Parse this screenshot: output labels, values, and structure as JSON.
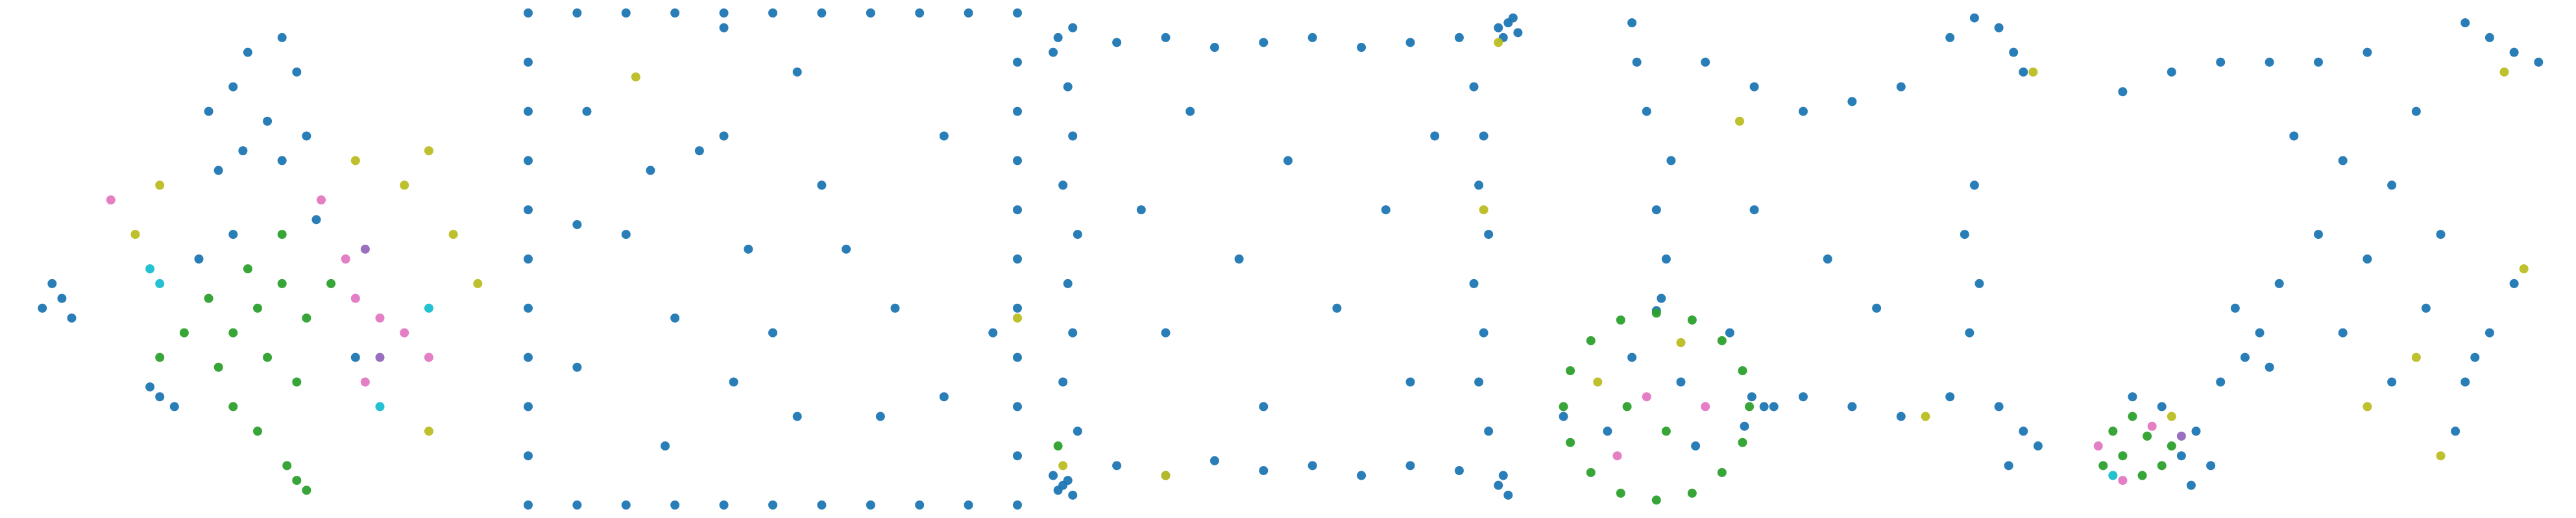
{
  "chart_data": [
    {
      "type": "scatter",
      "xlim": [
        0,
        100
      ],
      "ylim": [
        0,
        100
      ],
      "series": [
        {
          "color": "#1f77b4",
          "x": [
            48,
            55,
            45,
            58,
            40,
            52,
            60,
            47,
            55,
            42,
            8,
            10,
            6,
            12,
            30,
            33,
            28,
            45,
            38,
            62,
            70
          ],
          "y": [
            92,
            95,
            85,
            88,
            80,
            78,
            75,
            72,
            70,
            68,
            45,
            42,
            40,
            38,
            22,
            20,
            24,
            55,
            50,
            58,
            30
          ]
        },
        {
          "color": "#2ca02c",
          "x": [
            50,
            55,
            45,
            60,
            52,
            40,
            48,
            58,
            42,
            35,
            65,
            55,
            50,
            58,
            60,
            56,
            30,
            45
          ],
          "y": [
            40,
            45,
            35,
            38,
            30,
            42,
            48,
            25,
            28,
            35,
            45,
            55,
            15,
            5,
            3,
            8,
            30,
            20
          ]
        },
        {
          "color": "#e377c2",
          "x": [
            70,
            75,
            80,
            68,
            85,
            72,
            20,
            63
          ],
          "y": [
            42,
            38,
            35,
            50,
            30,
            25,
            62,
            62
          ]
        },
        {
          "color": "#bcbd22",
          "x": [
            25,
            85,
            90,
            80,
            95,
            30,
            70,
            85
          ],
          "y": [
            55,
            15,
            55,
            65,
            45,
            65,
            70,
            72
          ]
        },
        {
          "color": "#17becf",
          "x": [
            28,
            30,
            85,
            75
          ],
          "y": [
            48,
            45,
            40,
            20
          ]
        },
        {
          "color": "#9467bd",
          "x": [
            72,
            75
          ],
          "y": [
            52,
            30
          ]
        }
      ]
    },
    {
      "type": "scatter",
      "xlim": [
        0,
        100
      ],
      "ylim": [
        0,
        100
      ],
      "series": [
        {
          "color": "#1f77b4",
          "x": [
            0,
            10,
            20,
            30,
            40,
            50,
            60,
            70,
            80,
            90,
            100,
            0,
            0,
            0,
            0,
            0,
            0,
            0,
            0,
            0,
            0,
            10,
            20,
            30,
            40,
            50,
            60,
            70,
            80,
            90,
            100,
            100,
            100,
            100,
            100,
            100,
            100,
            100,
            100,
            100,
            40,
            12,
            25,
            35,
            40,
            55,
            85,
            60,
            10,
            45,
            65,
            75,
            30,
            50,
            95,
            42,
            55,
            72,
            28,
            20,
            85,
            10
          ],
          "y": [
            0,
            0,
            0,
            0,
            0,
            0,
            0,
            0,
            0,
            0,
            0,
            10,
            20,
            30,
            40,
            50,
            60,
            70,
            80,
            90,
            100,
            100,
            100,
            100,
            100,
            100,
            100,
            100,
            100,
            100,
            100,
            10,
            20,
            30,
            40,
            50,
            60,
            70,
            80,
            90,
            97,
            80,
            68,
            72,
            75,
            88,
            75,
            65,
            57,
            52,
            52,
            40,
            38,
            35,
            35,
            25,
            18,
            18,
            12,
            55,
            22,
            28
          ]
        },
        {
          "color": "#bcbd22",
          "x": [
            22,
            100
          ],
          "y": [
            87,
            38
          ]
        }
      ]
    },
    {
      "type": "scatter",
      "xlim": [
        0,
        100
      ],
      "ylim": [
        0,
        100
      ],
      "series": [
        {
          "color": "#1f77b4",
          "x": [
            3,
            5,
            2,
            6,
            4,
            93,
            95,
            97,
            94,
            96,
            93,
            95,
            94,
            3,
            6,
            2,
            5,
            6,
            4,
            7,
            5,
            6,
            4,
            7,
            88,
            90,
            89,
            91,
            88,
            90,
            89,
            91,
            15,
            25,
            35,
            45,
            55,
            65,
            75,
            85,
            15,
            25,
            35,
            45,
            55,
            65,
            75,
            85,
            30,
            50,
            70,
            40,
            60,
            25,
            75,
            45,
            80,
            20
          ],
          "y": [
            3,
            5,
            6,
            2,
            4,
            97,
            98,
            96,
            95,
            99,
            4,
            2,
            6,
            95,
            97,
            92,
            85,
            75,
            65,
            55,
            45,
            35,
            25,
            15,
            85,
            75,
            65,
            55,
            45,
            35,
            25,
            15,
            8,
            6,
            9,
            7,
            8,
            6,
            8,
            7,
            94,
            95,
            93,
            94,
            95,
            93,
            94,
            95,
            80,
            70,
            60,
            50,
            40,
            35,
            25,
            20,
            75,
            60
          ]
        },
        {
          "color": "#bcbd22",
          "x": [
            4,
            93,
            90,
            25
          ],
          "y": [
            8,
            94,
            60,
            6
          ]
        },
        {
          "color": "#2ca02c",
          "x": [
            3
          ],
          "y": [
            12
          ]
        }
      ]
    },
    {
      "type": "scatter",
      "xlim": [
        0,
        100
      ],
      "ylim": [
        0,
        100
      ],
      "series": [
        {
          "color": "#1f77b4",
          "x": [
            39.5,
            20,
            1,
            38,
            42,
            44,
            15,
            25,
            10,
            28,
            21,
            22,
            20,
            23,
            18,
            16,
            15,
            30,
            40,
            50,
            60,
            70,
            80,
            85,
            90,
            93,
            95,
            85,
            83,
            86,
            84,
            90,
            95,
            98,
            92,
            50,
            60,
            70,
            80,
            40,
            55,
            65,
            35
          ],
          "y": [
            22,
            39.5,
            18,
            16,
            20,
            20,
            30,
            25,
            15,
            12,
            42,
            50,
            60,
            70,
            80,
            90,
            98,
            90,
            85,
            80,
            82,
            85,
            95,
            99,
            97,
            92,
            88,
            65,
            55,
            45,
            35,
            20,
            15,
            12,
            8,
            22,
            20,
            18,
            22,
            60,
            50,
            40,
            35
          ]
        },
        {
          "color": "#2ca02c",
          "x": [
            39,
            37.6,
            33.4,
            27.3,
            20,
            12.7,
            6.6,
            2.4,
            1,
            2.4,
            6.6,
            12.7,
            20,
            27.3,
            33.4,
            37.6,
            22,
            14
          ],
          "y": [
            20,
            27.3,
            33.4,
            37.6,
            39,
            37.6,
            33.4,
            27.3,
            20,
            12.7,
            6.6,
            2.4,
            1,
            2.4,
            6.6,
            12.7,
            15,
            20
          ]
        },
        {
          "color": "#e377c2",
          "x": [
            18,
            30,
            12
          ],
          "y": [
            22,
            20,
            10
          ]
        },
        {
          "color": "#bcbd22",
          "x": [
            25,
            8,
            37,
            97,
            75
          ],
          "y": [
            33,
            25,
            78,
            88,
            18
          ]
        }
      ]
    },
    {
      "type": "scatter",
      "xlim": [
        0,
        100
      ],
      "ylim": [
        0,
        100
      ],
      "series": [
        {
          "color": "#1f77b4",
          "x": [
            22,
            25,
            18,
            28,
            24,
            12,
            30,
            35,
            38,
            33,
            40,
            42,
            20,
            30,
            40,
            50,
            60,
            10,
            80,
            85,
            90,
            95,
            90,
            85,
            80,
            78,
            82,
            45,
            55,
            65,
            50,
            60,
            70,
            75,
            55,
            65,
            72
          ],
          "y": [
            10,
            15,
            20,
            8,
            4,
            22,
            25,
            30,
            35,
            40,
            28,
            45,
            88,
            90,
            90,
            90,
            92,
            84,
            98,
            95,
            92,
            90,
            45,
            35,
            25,
            15,
            30,
            75,
            70,
            65,
            55,
            50,
            80,
            55,
            35,
            25,
            40
          ]
        },
        {
          "color": "#2ca02c",
          "x": [
            10,
            15,
            12,
            18,
            8,
            20,
            14,
            6
          ],
          "y": [
            10,
            14,
            18,
            8,
            15,
            12,
            6,
            8
          ]
        },
        {
          "color": "#e377c2",
          "x": [
            10,
            16,
            5
          ],
          "y": [
            5,
            16,
            12
          ]
        },
        {
          "color": "#bcbd22",
          "x": [
            20,
            60,
            75,
            92,
            70,
            88
          ],
          "y": [
            18,
            20,
            10,
            48,
            30,
            88
          ]
        },
        {
          "color": "#17becf",
          "x": [
            8
          ],
          "y": [
            6
          ]
        },
        {
          "color": "#9467bd",
          "x": [
            22
          ],
          "y": [
            14
          ]
        }
      ]
    }
  ]
}
